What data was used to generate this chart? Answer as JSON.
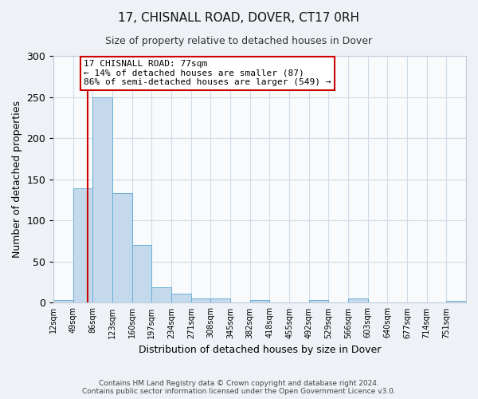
{
  "title": "17, CHISNALL ROAD, DOVER, CT17 0RH",
  "subtitle": "Size of property relative to detached houses in Dover",
  "xlabel": "Distribution of detached houses by size in Dover",
  "ylabel": "Number of detached properties",
  "bin_labels": [
    "12sqm",
    "49sqm",
    "86sqm",
    "123sqm",
    "160sqm",
    "197sqm",
    "234sqm",
    "271sqm",
    "308sqm",
    "345sqm",
    "382sqm",
    "418sqm",
    "455sqm",
    "492sqm",
    "529sqm",
    "566sqm",
    "603sqm",
    "640sqm",
    "677sqm",
    "714sqm",
    "751sqm"
  ],
  "bar_values": [
    3,
    139,
    250,
    133,
    70,
    19,
    11,
    5,
    5,
    0,
    3,
    0,
    0,
    3,
    0,
    5,
    0,
    0,
    0,
    0,
    2
  ],
  "bar_color": "#c5d9ed",
  "bar_edgecolor": "#6aafd6",
  "ylim": [
    0,
    300
  ],
  "yticks": [
    0,
    50,
    100,
    150,
    200,
    250,
    300
  ],
  "vline_color": "#cc0000",
  "annotation_title": "17 CHISNALL ROAD: 77sqm",
  "annotation_line1": "← 14% of detached houses are smaller (87)",
  "annotation_line2": "86% of semi-detached houses are larger (549) →",
  "annotation_box_color": "#ffffff",
  "annotation_box_edgecolor": "#cc0000",
  "footer1": "Contains HM Land Registry data © Crown copyright and database right 2024.",
  "footer2": "Contains public sector information licensed under the Open Government Licence v3.0.",
  "background_color": "#eef2f7",
  "plot_background_color": "#f8fafc",
  "grid_color": "#d0dce8"
}
